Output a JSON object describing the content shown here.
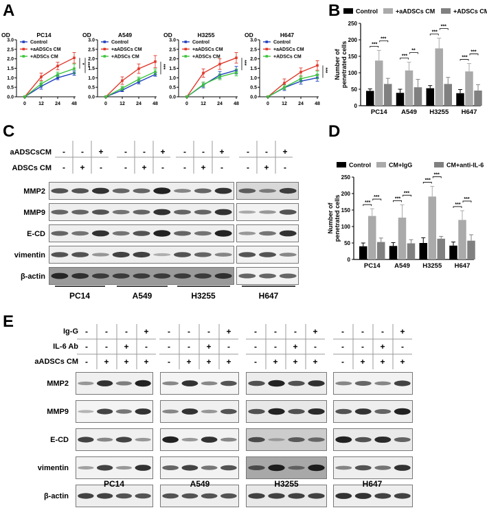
{
  "panels": {
    "A": {
      "letter": "A"
    },
    "B": {
      "letter": "B"
    },
    "C": {
      "letter": "C"
    },
    "D": {
      "letter": "D"
    },
    "E": {
      "letter": "E"
    }
  },
  "chart_data": [
    {
      "panel": "A",
      "type": "line",
      "title": "PC14",
      "ylabel": "OD",
      "xlabel": "",
      "x": [
        0,
        12,
        24,
        48
      ],
      "ylim": [
        0,
        3.0
      ],
      "yticks": [
        "0.0",
        "0.5",
        "1.0",
        "1.5",
        "2.0",
        "2.5",
        "3.0"
      ],
      "series": [
        {
          "name": "Control",
          "color": "#1f3fbf",
          "values": [
            0,
            0.55,
            1.0,
            1.25
          ],
          "errors": [
            0,
            0.15,
            0.1,
            0.12
          ]
        },
        {
          "name": "+aADSCs CM",
          "color": "#e0392b",
          "values": [
            0,
            1.05,
            1.62,
            2.05
          ],
          "errors": [
            0,
            0.2,
            0.2,
            0.28
          ]
        },
        {
          "name": "+ADSCs CM",
          "color": "#3cc43c",
          "values": [
            0,
            0.68,
            1.18,
            1.48
          ],
          "errors": [
            0,
            0.12,
            0.12,
            0.25
          ]
        }
      ],
      "annotations": [
        "*",
        "***"
      ],
      "legend_position": "upper-left"
    },
    {
      "panel": "A",
      "type": "line",
      "title": "A549",
      "ylabel": "OD",
      "x": [
        0,
        12,
        24,
        48
      ],
      "ylim": [
        0,
        3.0
      ],
      "yticks": [
        "0.0",
        "0.5",
        "1.0",
        "1.5",
        "2.0",
        "2.5",
        "3.0"
      ],
      "series": [
        {
          "name": "Control",
          "color": "#1f3fbf",
          "values": [
            0,
            0.35,
            0.78,
            1.18
          ],
          "errors": [
            0,
            0.08,
            0.1,
            0.1
          ]
        },
        {
          "name": "+aADSCs CM",
          "color": "#e0392b",
          "values": [
            0,
            0.85,
            1.48,
            1.85
          ],
          "errors": [
            0,
            0.2,
            0.25,
            0.32
          ]
        },
        {
          "name": "+ADSCs CM",
          "color": "#3cc43c",
          "values": [
            0,
            0.45,
            0.92,
            1.32
          ],
          "errors": [
            0,
            0.1,
            0.12,
            0.15
          ]
        }
      ],
      "annotations": [
        "***"
      ],
      "legend_position": "upper-left"
    },
    {
      "panel": "A",
      "type": "line",
      "title": "H3255",
      "ylabel": "OD",
      "x": [
        0,
        12,
        24,
        48
      ],
      "ylim": [
        0,
        3.0
      ],
      "yticks": [
        "0.0",
        "0.5",
        "1.0",
        "1.5",
        "2.0",
        "2.5",
        "3.0"
      ],
      "series": [
        {
          "name": "Control",
          "color": "#1f3fbf",
          "values": [
            0,
            0.62,
            1.15,
            1.4
          ],
          "errors": [
            0,
            0.15,
            0.18,
            0.2
          ]
        },
        {
          "name": "+aADSCs CM",
          "color": "#e0392b",
          "values": [
            0,
            1.25,
            1.72,
            2.05
          ],
          "errors": [
            0,
            0.22,
            0.28,
            0.28
          ]
        },
        {
          "name": "+ADSCs CM",
          "color": "#3cc43c",
          "values": [
            0,
            0.65,
            1.05,
            1.28
          ],
          "errors": [
            0,
            0.12,
            0.15,
            0.18
          ]
        }
      ],
      "annotations": [
        "***"
      ],
      "legend_position": "upper-left"
    },
    {
      "panel": "A",
      "type": "line",
      "title": "H647",
      "ylabel": "OD",
      "x": [
        0,
        12,
        24,
        48
      ],
      "ylim": [
        0,
        3.0
      ],
      "yticks": [
        "0.0",
        "0.5",
        "1.0",
        "1.5",
        "2.0",
        "2.5",
        "3.0"
      ],
      "series": [
        {
          "name": "Control",
          "color": "#1f3fbf",
          "values": [
            0,
            0.48,
            0.82,
            1.0
          ],
          "errors": [
            0,
            0.15,
            0.15,
            0.18
          ]
        },
        {
          "name": "+aADSCs CM",
          "color": "#e0392b",
          "values": [
            0,
            0.72,
            1.3,
            1.65
          ],
          "errors": [
            0,
            0.22,
            0.22,
            0.25
          ]
        },
        {
          "name": "+ADSCs CM",
          "color": "#3cc43c",
          "values": [
            0,
            0.5,
            0.95,
            1.15
          ],
          "errors": [
            0,
            0.12,
            0.15,
            0.2
          ]
        }
      ],
      "annotations": [
        "***"
      ],
      "legend_position": "upper-left"
    },
    {
      "panel": "B",
      "type": "bar",
      "title": "",
      "ylabel": "Number of penetrated cells",
      "categories": [
        "PC14",
        "A549",
        "H3255",
        "H647"
      ],
      "ylim": [
        0,
        250
      ],
      "yticks": [
        "0",
        "50",
        "100",
        "150",
        "200",
        "250"
      ],
      "series": [
        {
          "name": "Control",
          "color": "#000000",
          "values": [
            45,
            39,
            53,
            38
          ],
          "errors": [
            6,
            11,
            8,
            11
          ]
        },
        {
          "name": "+aADSCs CM",
          "color": "#aaaaaa",
          "values": [
            137,
            107,
            174,
            104
          ],
          "errors": [
            31,
            25,
            31,
            24
          ]
        },
        {
          "name": "+ADSCs CM",
          "color": "#808080",
          "values": [
            66,
            56,
            66,
            46
          ],
          "errors": [
            17,
            24,
            20,
            18
          ]
        }
      ],
      "significance": [
        [
          "***",
          "***"
        ],
        [
          "***",
          "**"
        ],
        [
          "***",
          "***"
        ],
        [
          "***",
          "***"
        ]
      ],
      "legend_position": "top"
    },
    {
      "panel": "D",
      "type": "bar",
      "title": "",
      "ylabel": "Number of penetrated cells",
      "categories": [
        "PC14",
        "A549",
        "H3255",
        "H647"
      ],
      "ylim": [
        0,
        250
      ],
      "yticks": [
        "0",
        "50",
        "100",
        "150",
        "200",
        "250"
      ],
      "series": [
        {
          "name": "Control",
          "color": "#000000",
          "values": [
            40,
            41,
            50,
            42
          ],
          "errors": [
            10,
            10,
            16,
            11
          ]
        },
        {
          "name": "CM+IgG",
          "color": "#aaaaaa",
          "values": [
            132,
            127,
            191,
            120
          ],
          "errors": [
            22,
            39,
            31,
            28
          ]
        },
        {
          "name": "CM+anti-IL-6",
          "color": "#808080",
          "values": [
            53,
            49,
            63,
            57
          ],
          "errors": [
            12,
            11,
            7,
            18
          ]
        }
      ],
      "significance": [
        [
          "***",
          "***"
        ],
        [
          "***",
          "***"
        ],
        [
          "***",
          "***"
        ],
        [
          "***",
          "***"
        ]
      ],
      "legend_position": "top"
    }
  ],
  "legendA": {
    "items": [
      "Control",
      "+aADSCs CM",
      "+ADSCs CM"
    ]
  },
  "legendB": {
    "items": [
      "Control",
      "+aADSCs CM",
      "+ADSCs CM"
    ]
  },
  "legendD": {
    "items": [
      "Control",
      "CM+IgG",
      "CM+anti-IL-6"
    ]
  },
  "blotC": {
    "conditions": [
      {
        "label": "aADSCsCM",
        "values": [
          "-",
          "-",
          "+",
          "-",
          "-",
          "+",
          "-",
          "-",
          "+",
          "-",
          "-",
          "+"
        ]
      },
      {
        "label": "ADSCs CM",
        "values": [
          "-",
          "+",
          "-",
          "-",
          "+",
          "-",
          "-",
          "+",
          "-",
          "-",
          "+",
          "-"
        ]
      }
    ],
    "proteins": [
      "MMP2",
      "MMP9",
      "E-CD",
      "vimentin",
      "β-actin"
    ],
    "cell_lines": [
      "PC14",
      "A549",
      "H3255",
      "H647"
    ]
  },
  "blotE": {
    "conditions": [
      {
        "label": "Ig-G",
        "values": [
          "-",
          "-",
          "-",
          "+",
          "-",
          "-",
          "-",
          "+",
          "-",
          "-",
          "-",
          "+",
          "-",
          "-",
          "-",
          "+"
        ]
      },
      {
        "label": "IL-6 Ab",
        "values": [
          "-",
          "-",
          "+",
          "-",
          "-",
          "-",
          "+",
          "-",
          "-",
          "-",
          "+",
          "-",
          "-",
          "-",
          "+",
          "-"
        ]
      },
      {
        "label": "aADSCs CM",
        "values": [
          "-",
          "+",
          "+",
          "+",
          "-",
          "+",
          "+",
          "+",
          "-",
          "+",
          "+",
          "+",
          "-",
          "+",
          "+",
          "+"
        ]
      }
    ],
    "proteins": [
      "MMP2",
      "MMP9",
      "E-CD",
      "vimentin",
      "β-actin"
    ],
    "cell_lines": [
      "PC14",
      "A549",
      "H3255",
      "H647"
    ]
  }
}
